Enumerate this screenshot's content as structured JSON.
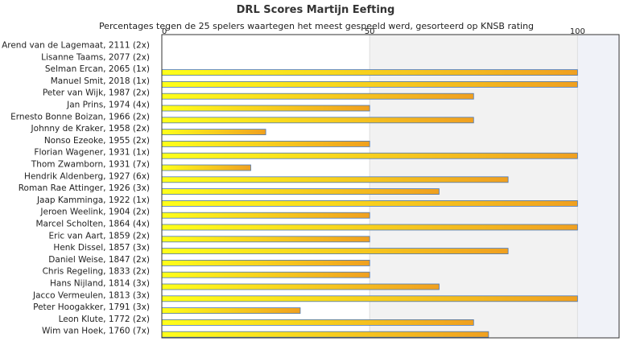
{
  "chart_data": {
    "type": "bar",
    "orientation": "horizontal",
    "title": "DRL Scores Martijn Eefting",
    "subtitle": "Percentages tegen de 25 spelers waartegen het meest gespeeld werd, gesorteerd op KNSB rating",
    "xlim": [
      0,
      110
    ],
    "xticks": [
      0,
      50,
      100
    ],
    "categories": [
      "Arend van de Lagemaat, 2111 (2x)",
      "Lisanne Taams, 2077 (2x)",
      "Selman Ercan, 2065 (1x)",
      "Manuel Smit, 2018 (1x)",
      "Peter van Wijk, 1987 (2x)",
      "Jan Prins, 1974 (4x)",
      "Ernesto Bonne Boizan, 1966 (2x)",
      "Johnny de Kraker, 1958 (2x)",
      "Nonso Ezeoke, 1955 (2x)",
      "Florian Wagener, 1931 (1x)",
      "Thom Zwamborn, 1931 (7x)",
      "Hendrik Aldenberg, 1927 (6x)",
      "Roman Rae Attinger, 1926 (3x)",
      "Jaap Kamminga, 1922 (1x)",
      "Jeroen Weelink, 1904 (2x)",
      "Marcel Scholten, 1864 (4x)",
      "Eric van Aart, 1859 (2x)",
      "Henk Dissel, 1857 (3x)",
      "Daniel Weise, 1847 (2x)",
      "Chris Regeling, 1833 (2x)",
      "Hans Nijland, 1814 (3x)",
      "Jacco Vermeulen, 1813 (3x)",
      "Peter Hoogakker, 1791 (3x)",
      "Leon Klute, 1772 (2x)",
      "Wim van Hoek, 1760 (7x)"
    ],
    "values": [
      0,
      0,
      100,
      100,
      75,
      50,
      75,
      25,
      50,
      100,
      21.4,
      83.3,
      66.7,
      100,
      50,
      100,
      50,
      83.3,
      50,
      50,
      66.7,
      100,
      33.3,
      75,
      78.6
    ],
    "colors": {
      "bar_start": "#ffff1a",
      "bar_end": "#f0a020",
      "bar_border": "#4a78b8",
      "band": "#f2f2f2",
      "band_right": "#f0f2f8",
      "gridline": "#dedede",
      "frame": "#333333"
    }
  }
}
